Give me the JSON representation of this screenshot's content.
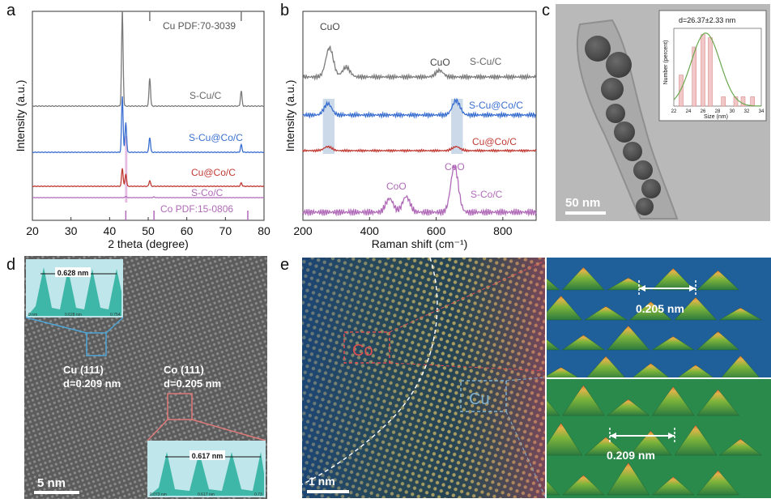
{
  "panels": [
    {
      "id": "a",
      "label": "a"
    },
    {
      "id": "b",
      "label": "b"
    },
    {
      "id": "c",
      "label": "c"
    },
    {
      "id": "d",
      "label": "d"
    },
    {
      "id": "e",
      "label": "e"
    }
  ],
  "chart_data": [
    {
      "panel": "a",
      "type": "line",
      "title": "",
      "xlabel": "2 theta (degree)",
      "ylabel": "Intensity (a.u.)",
      "xlim": [
        20,
        80
      ],
      "xticks": [
        20,
        30,
        40,
        50,
        60,
        70,
        80
      ],
      "ref_cu": {
        "label": "Cu PDF:70-3039",
        "peaks": [
          43.3,
          50.4,
          74.1
        ]
      },
      "ref_co": {
        "label": "Co PDF:15-0806",
        "peaks": [
          44.2,
          51.5,
          75.8
        ]
      },
      "series": [
        {
          "name": "S-Cu/C",
          "color": "#7a7a7a",
          "peaks": [
            [
              43.3,
              1.0
            ],
            [
              50.4,
              0.3
            ],
            [
              74.1,
              0.16
            ]
          ]
        },
        {
          "name": "S-Cu@Co/C",
          "color": "#3a6fd0",
          "peaks": [
            [
              43.3,
              0.75
            ],
            [
              44.2,
              0.4
            ],
            [
              50.4,
              0.2
            ],
            [
              74.1,
              0.1
            ]
          ]
        },
        {
          "name": "Cu@Co/C",
          "color": "#c03a34",
          "peaks": [
            [
              43.3,
              0.32
            ],
            [
              44.2,
              0.22
            ],
            [
              50.4,
              0.1
            ],
            [
              74.1,
              0.06
            ]
          ]
        },
        {
          "name": "S-Co/C",
          "color": "#b06ab8",
          "peaks": [
            [
              44.2,
              0.05
            ],
            [
              51.5,
              0.03
            ]
          ]
        }
      ]
    },
    {
      "panel": "b",
      "type": "line",
      "title": "",
      "xlabel": "Raman shift (cm⁻¹)",
      "ylabel": "Intensity (a.u.)",
      "xlim": [
        200,
        900
      ],
      "xticks": [
        200,
        400,
        600,
        800
      ],
      "annotations": [
        {
          "text": "CuO",
          "x": 280
        },
        {
          "text": "CuO",
          "x": 610
        },
        {
          "text": "CoO",
          "x": 485
        },
        {
          "text": "CoO",
          "x": 655
        }
      ],
      "highlight_bands": [
        [
          260,
          295
        ],
        [
          645,
          680
        ]
      ],
      "series": [
        {
          "name": "S-Cu/C",
          "color": "#7a7a7a",
          "peaks": [
            [
              280,
              0.9
            ],
            [
              330,
              0.3
            ],
            [
              610,
              0.2
            ]
          ]
        },
        {
          "name": "S-Cu@Co/C",
          "color": "#3a6fd0",
          "peaks": [
            [
              275,
              0.35
            ],
            [
              660,
              0.45
            ]
          ]
        },
        {
          "name": "Cu@Co/C",
          "color": "#c03a34",
          "peaks": [
            [
              275,
              0.25
            ],
            [
              660,
              0.25
            ]
          ]
        },
        {
          "name": "S-Co/C",
          "color": "#b06ab8",
          "peaks": [
            [
              460,
              0.28
            ],
            [
              510,
              0.32
            ],
            [
              655,
              0.95
            ]
          ]
        }
      ]
    },
    {
      "panel": "c-inset",
      "type": "bar",
      "title": "d=26.37±2.33 nm",
      "xlabel": "Size (nm)",
      "ylabel": "Number (percent)",
      "xlim": [
        22,
        34
      ],
      "xticks": [
        22,
        24,
        26,
        28,
        30,
        32,
        34
      ],
      "categories": [
        23,
        24.8,
        26,
        27,
        28.8,
        30.5,
        31.5,
        32.8
      ],
      "values": [
        20,
        38,
        46,
        44,
        6,
        6,
        6,
        6
      ],
      "fit_color": "#6aa84f",
      "bar_color": "#f2c7c7"
    }
  ],
  "panel_c": {
    "scalebar": "50 nm"
  },
  "panel_d": {
    "scalebar": "5 nm",
    "cu_label": "Cu (111)",
    "cu_d": "d=0.209 nm",
    "co_label": "Co (111)",
    "co_d": "d=0.205 nm",
    "profile_top": {
      "value": "0.628 nm",
      "left_tick": "0 nm",
      "mid_tick": "0.628 nm",
      "right_tick": "0.754"
    },
    "profile_bottom": {
      "value": "0.617 nm",
      "left_tick": "0.073 nm",
      "mid_tick": "0.617 nm",
      "right_tick": "0.73"
    }
  },
  "panel_e": {
    "scalebar": "1 nm",
    "co_label": "Co",
    "cu_label": "Cu",
    "top_distance": "0.205 nm",
    "bottom_distance": "0.209 nm"
  },
  "colors": {
    "cu_box": "#d14b4b",
    "cu_highlight": "#7fb0cf",
    "profile_fill": "#3fb7a8",
    "profile_bg": "#bfe6ea"
  }
}
